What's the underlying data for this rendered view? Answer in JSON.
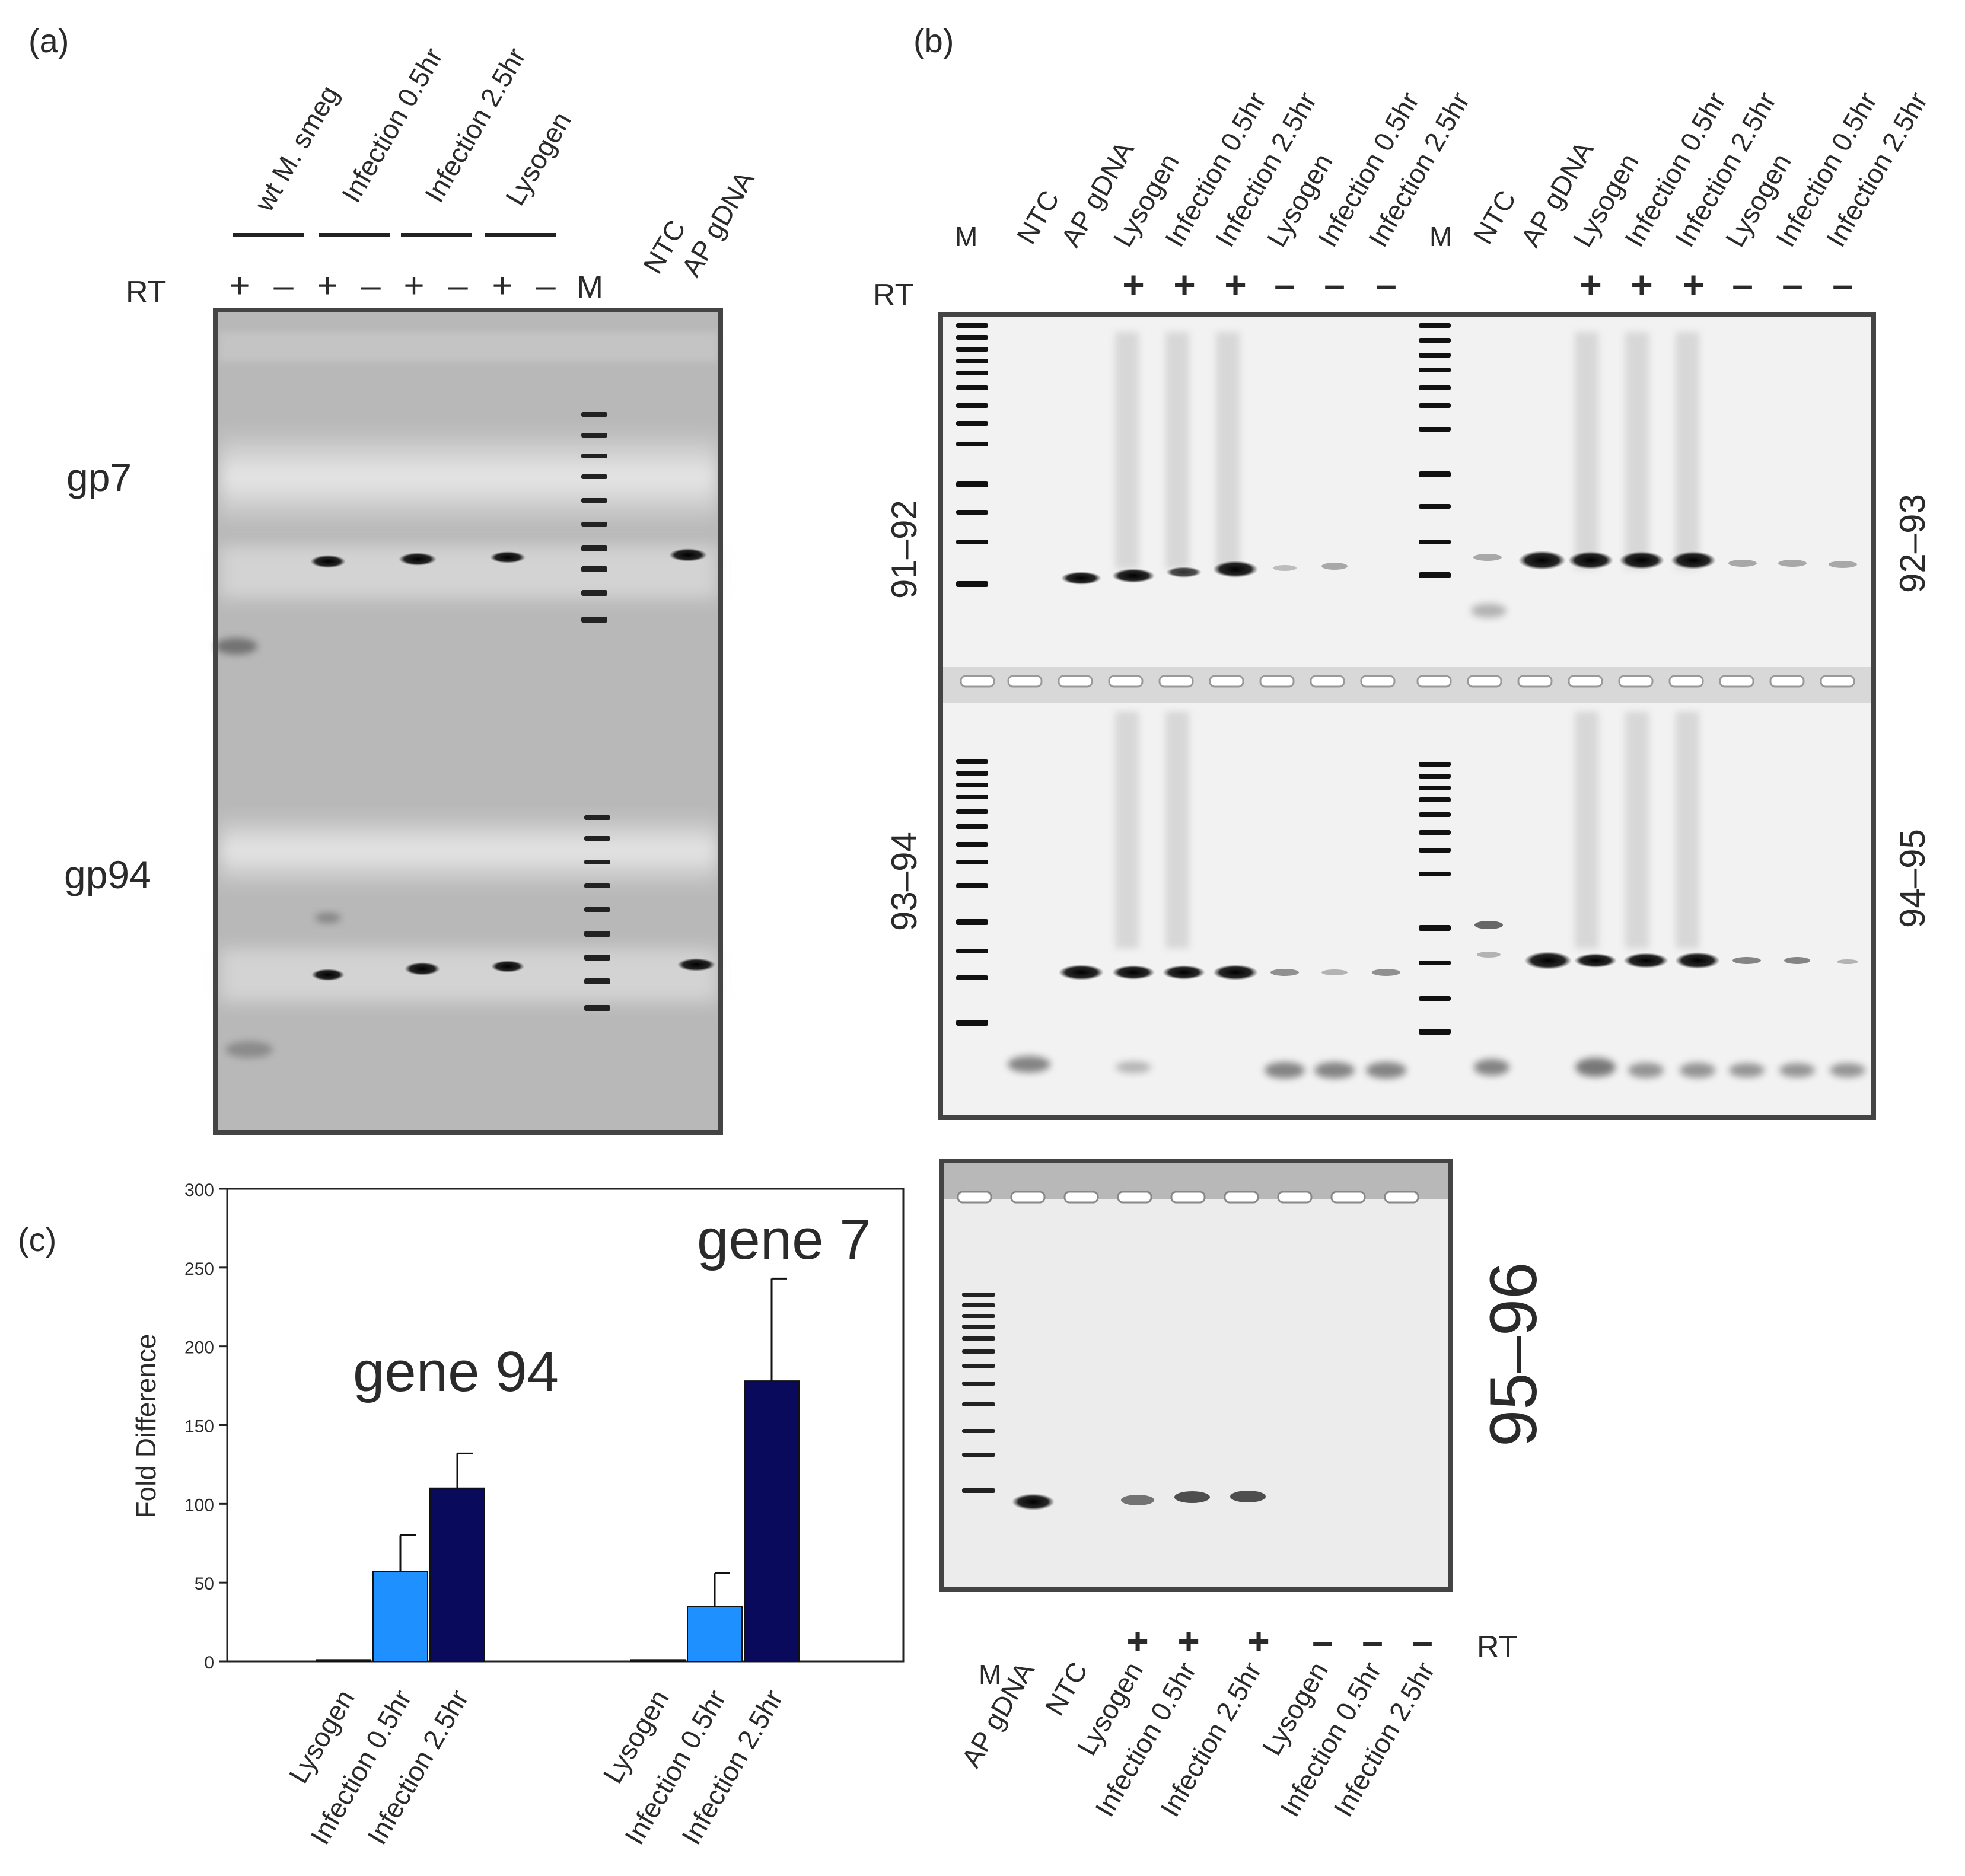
{
  "panels": {
    "a": {
      "label": "(a)",
      "groups": [
        "wt M. smeg",
        "Infection 0.5hr",
        "Infection 2.5hr",
        "Lysogen"
      ],
      "extra_lanes": [
        "NTC",
        "AP gDNA"
      ],
      "rt_label": "RT",
      "rt_signs": [
        "+",
        "–",
        "+",
        "–",
        "+",
        "–",
        "+",
        "–"
      ],
      "marker": "M",
      "rows": [
        "gp7",
        "gp94"
      ]
    },
    "b": {
      "label": "(b)",
      "top_lanes": [
        "M",
        "NTC",
        "AP gDNA",
        "Lysogen",
        "Infection 0.5hr",
        "Infection 2.5hr",
        "Lysogen",
        "Infection 0.5hr",
        "Infection 2.5hr"
      ],
      "rt_label": "RT",
      "rt_signs": [
        "+",
        "+",
        "+",
        "–",
        "–",
        "–"
      ],
      "region_labels": {
        "top_left": "91–92",
        "top_right": "92–93",
        "bottom_left": "93–94",
        "bottom_right": "94–95"
      },
      "lower_gel": {
        "region_label": "95–96",
        "rt_label": "RT",
        "rt_signs": [
          "+",
          "+",
          "+",
          "–",
          "–",
          "–"
        ],
        "lanes": [
          "M",
          "AP gDNA",
          "NTC",
          "Lysogen",
          "Infection 0.5hr",
          "Infection 2.5hr",
          "Lysogen",
          "Infection 0.5hr",
          "Infection 2.5hr"
        ]
      }
    },
    "c": {
      "label": "(c)",
      "chart_data": {
        "type": "bar",
        "ylabel": "Fold Difference",
        "ylim": [
          0,
          300
        ],
        "yticks": [
          0,
          50,
          100,
          150,
          200,
          250,
          300
        ],
        "groups": [
          {
            "name": "gene 94",
            "categories": [
              "Lysogen",
              "Infection 0.5hr",
              "Infection 2.5hr"
            ],
            "values": [
              1,
              57,
              110
            ],
            "errors": [
              0,
              23,
              22
            ]
          },
          {
            "name": "gene 7",
            "categories": [
              "Lysogen",
              "Infection 0.5hr",
              "Infection 2.5hr"
            ],
            "values": [
              1,
              35,
              178
            ],
            "errors": [
              0,
              21,
              65
            ]
          }
        ],
        "colors": [
          "#1a1a1a",
          "#1e90ff",
          "#0a0a5c"
        ]
      }
    }
  }
}
